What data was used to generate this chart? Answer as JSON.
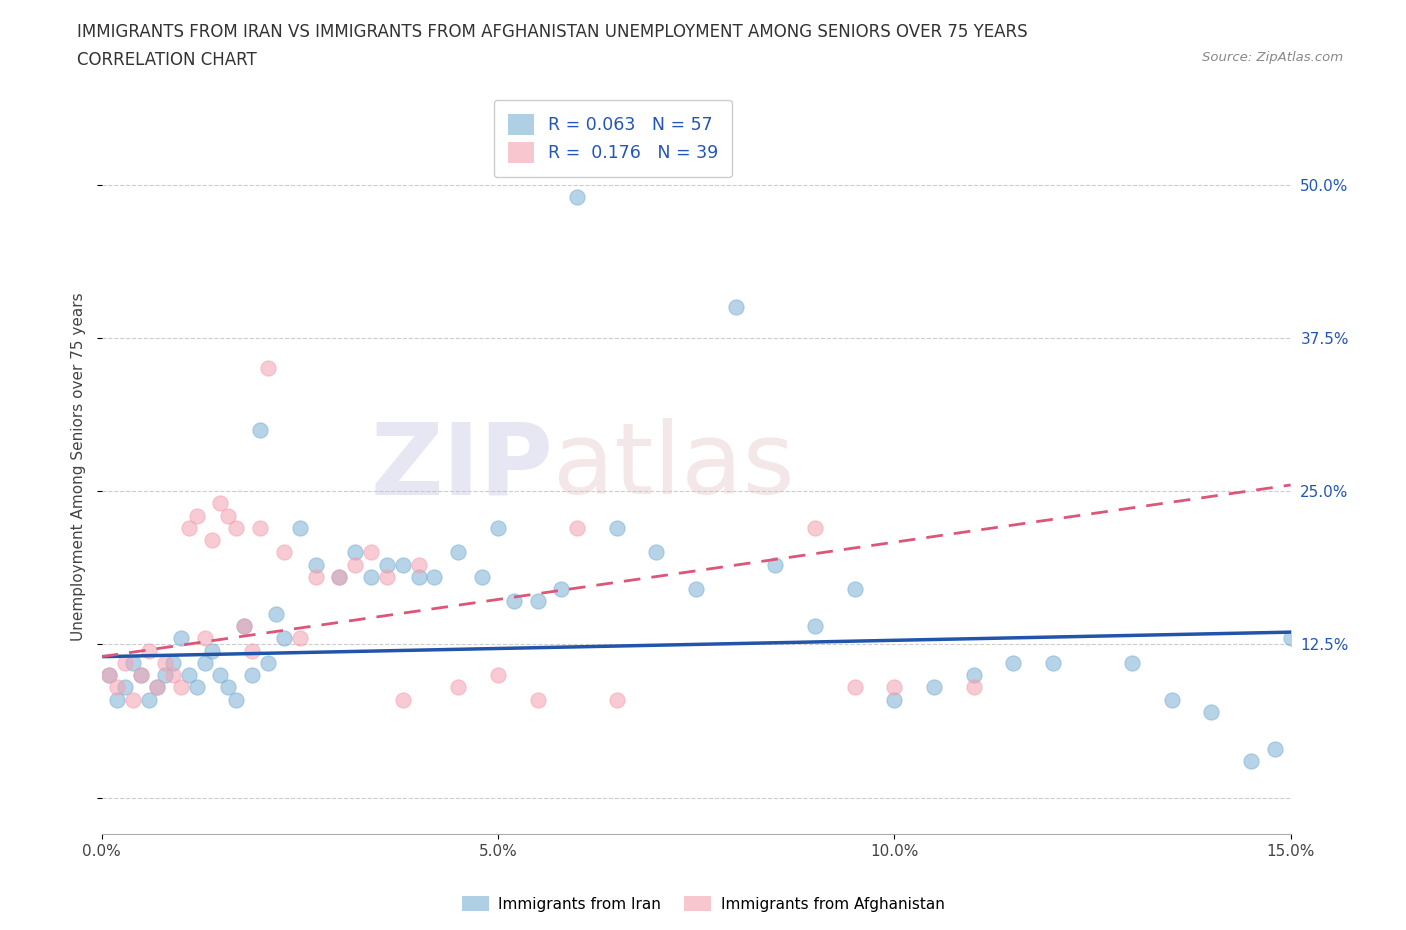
{
  "title_line1": "IMMIGRANTS FROM IRAN VS IMMIGRANTS FROM AFGHANISTAN UNEMPLOYMENT AMONG SENIORS OVER 75 YEARS",
  "title_line2": "CORRELATION CHART",
  "source_text": "Source: ZipAtlas.com",
  "ylabel": "Unemployment Among Seniors over 75 years",
  "xmin": 0.0,
  "xmax": 0.15,
  "ymin": -0.03,
  "ymax": 0.57,
  "yticks": [
    0.0,
    0.125,
    0.25,
    0.375,
    0.5
  ],
  "ytick_labels": [
    "",
    "12.5%",
    "25.0%",
    "37.5%",
    "50.0%"
  ],
  "xticks": [
    0.0,
    0.05,
    0.1,
    0.15
  ],
  "xtick_labels": [
    "0.0%",
    "5.0%",
    "10.0%",
    "15.0%"
  ],
  "grid_color": "#cccccc",
  "iran_color": "#7bafd4",
  "afghanistan_color": "#f4a0b0",
  "iran_R": 0.063,
  "iran_N": 57,
  "afghanistan_R": 0.176,
  "afghanistan_N": 39,
  "legend_label_iran": "Immigrants from Iran",
  "legend_label_afghanistan": "Immigrants from Afghanistan",
  "watermark_ZIP": "ZIP",
  "watermark_atlas": "atlas",
  "iran_x": [
    0.001,
    0.002,
    0.003,
    0.004,
    0.005,
    0.006,
    0.007,
    0.008,
    0.009,
    0.01,
    0.011,
    0.012,
    0.013,
    0.014,
    0.015,
    0.016,
    0.017,
    0.018,
    0.019,
    0.02,
    0.021,
    0.022,
    0.023,
    0.025,
    0.027,
    0.03,
    0.032,
    0.034,
    0.036,
    0.038,
    0.04,
    0.042,
    0.045,
    0.048,
    0.05,
    0.055,
    0.06,
    0.065,
    0.07,
    0.075,
    0.08,
    0.085,
    0.09,
    0.095,
    0.1,
    0.105,
    0.11,
    0.115,
    0.12,
    0.13,
    0.135,
    0.14,
    0.145,
    0.148,
    0.15,
    0.052,
    0.058
  ],
  "iran_y": [
    0.1,
    0.08,
    0.09,
    0.11,
    0.1,
    0.08,
    0.09,
    0.1,
    0.11,
    0.13,
    0.1,
    0.09,
    0.11,
    0.12,
    0.1,
    0.09,
    0.08,
    0.14,
    0.1,
    0.3,
    0.11,
    0.15,
    0.13,
    0.22,
    0.19,
    0.18,
    0.2,
    0.18,
    0.19,
    0.19,
    0.18,
    0.18,
    0.2,
    0.18,
    0.22,
    0.16,
    0.49,
    0.22,
    0.2,
    0.17,
    0.4,
    0.19,
    0.14,
    0.17,
    0.08,
    0.09,
    0.1,
    0.11,
    0.11,
    0.11,
    0.08,
    0.07,
    0.03,
    0.04,
    0.13,
    0.16,
    0.17
  ],
  "afghanistan_x": [
    0.001,
    0.002,
    0.003,
    0.004,
    0.005,
    0.006,
    0.007,
    0.008,
    0.009,
    0.01,
    0.011,
    0.012,
    0.013,
    0.014,
    0.015,
    0.016,
    0.017,
    0.018,
    0.019,
    0.02,
    0.021,
    0.023,
    0.025,
    0.027,
    0.03,
    0.032,
    0.034,
    0.036,
    0.038,
    0.04,
    0.045,
    0.05,
    0.055,
    0.06,
    0.065,
    0.09,
    0.095,
    0.1,
    0.11
  ],
  "afghanistan_y": [
    0.1,
    0.09,
    0.11,
    0.08,
    0.1,
    0.12,
    0.09,
    0.11,
    0.1,
    0.09,
    0.22,
    0.23,
    0.13,
    0.21,
    0.24,
    0.23,
    0.22,
    0.14,
    0.12,
    0.22,
    0.35,
    0.2,
    0.13,
    0.18,
    0.18,
    0.19,
    0.2,
    0.18,
    0.08,
    0.19,
    0.09,
    0.1,
    0.08,
    0.22,
    0.08,
    0.22,
    0.09,
    0.09,
    0.09
  ],
  "iran_line_x": [
    0.0,
    0.15
  ],
  "iran_line_y": [
    0.115,
    0.135
  ],
  "afg_line_x": [
    0.0,
    0.15
  ],
  "afg_line_y": [
    0.115,
    0.255
  ]
}
